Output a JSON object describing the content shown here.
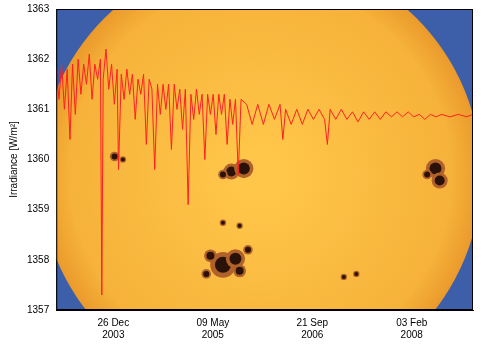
{
  "chart_data": {
    "type": "line",
    "y_label": "Irradiance [W/m²]",
    "color": "#ff2020",
    "grid": false,
    "xlim": [
      "2003-03-14",
      "2008-12-07"
    ],
    "xticks": [
      {
        "value": "2003-12-26",
        "label": "26 Dec 2003"
      },
      {
        "value": "2005-05-09",
        "label": "09 May 2005"
      },
      {
        "value": "2006-09-21",
        "label": "21 Sep 2006"
      },
      {
        "value": "2008-02-03",
        "label": "03 Feb 2008"
      }
    ],
    "ylim": [
      1357,
      1363
    ],
    "yticks": [
      1357,
      1358,
      1359,
      1360,
      1361,
      1362,
      1363
    ],
    "x": [
      "2003-03-14",
      "2003-03-28",
      "2003-04-10",
      "2003-04-24",
      "2003-05-08",
      "2003-05-22",
      "2003-06-04",
      "2003-06-18",
      "2003-07-02",
      "2003-07-16",
      "2003-07-30",
      "2003-08-13",
      "2003-08-27",
      "2003-09-10",
      "2003-09-24",
      "2003-10-08",
      "2003-10-22",
      "2003-10-29",
      "2003-11-05",
      "2003-11-19",
      "2003-12-03",
      "2003-12-17",
      "2003-12-31",
      "2004-01-14",
      "2004-01-21",
      "2004-02-04",
      "2004-02-18",
      "2004-03-03",
      "2004-03-17",
      "2004-03-31",
      "2004-04-14",
      "2004-04-28",
      "2004-05-12",
      "2004-05-26",
      "2004-06-09",
      "2004-06-23",
      "2004-07-07",
      "2004-07-21",
      "2004-08-04",
      "2004-08-18",
      "2004-09-01",
      "2004-09-15",
      "2004-09-29",
      "2004-10-13",
      "2004-10-27",
      "2004-11-10",
      "2004-11-24",
      "2004-12-08",
      "2004-12-22",
      "2005-01-05",
      "2005-01-19",
      "2005-02-02",
      "2005-02-16",
      "2005-03-02",
      "2005-03-16",
      "2005-03-30",
      "2005-04-13",
      "2005-04-27",
      "2005-05-11",
      "2005-05-25",
      "2005-06-08",
      "2005-06-22",
      "2005-07-06",
      "2005-07-20",
      "2005-08-03",
      "2005-08-17",
      "2005-08-31",
      "2005-09-14",
      "2005-09-28",
      "2005-10-26",
      "2005-11-23",
      "2005-12-21",
      "2006-01-18",
      "2006-02-15",
      "2006-03-15",
      "2006-04-12",
      "2006-04-26",
      "2006-05-10",
      "2006-06-07",
      "2006-07-05",
      "2006-08-02",
      "2006-08-30",
      "2006-09-27",
      "2006-10-25",
      "2006-11-22",
      "2006-12-06",
      "2006-12-20",
      "2007-01-17",
      "2007-02-14",
      "2007-03-14",
      "2007-04-11",
      "2007-05-09",
      "2007-06-06",
      "2007-07-04",
      "2007-08-01",
      "2007-08-29",
      "2007-09-26",
      "2007-10-24",
      "2007-11-21",
      "2007-12-19",
      "2008-01-16",
      "2008-02-13",
      "2008-03-12",
      "2008-04-09",
      "2008-05-07",
      "2008-06-04",
      "2008-07-02",
      "2008-08-13",
      "2008-09-24",
      "2008-11-05",
      "2008-12-07"
    ],
    "values": [
      1361.8,
      1361.2,
      1361.9,
      1361.0,
      1361.8,
      1360.4,
      1361.9,
      1360.9,
      1362.0,
      1361.3,
      1361.9,
      1361.5,
      1362.1,
      1361.2,
      1361.9,
      1361.6,
      1362.0,
      1357.3,
      1361.6,
      1362.2,
      1361.4,
      1361.9,
      1361.1,
      1361.8,
      1359.8,
      1361.7,
      1361.2,
      1361.8,
      1361.3,
      1361.7,
      1360.8,
      1361.6,
      1361.3,
      1361.7,
      1360.3,
      1361.6,
      1361.4,
      1359.8,
      1361.5,
      1360.9,
      1361.5,
      1361.0,
      1361.5,
      1360.2,
      1361.5,
      1361.0,
      1361.4,
      1360.6,
      1361.4,
      1359.1,
      1361.3,
      1360.8,
      1361.4,
      1360.9,
      1361.3,
      1360.0,
      1361.3,
      1360.9,
      1361.3,
      1360.5,
      1361.3,
      1360.9,
      1361.3,
      1360.3,
      1361.2,
      1360.7,
      1361.2,
      1359.7,
      1361.2,
      1361.1,
      1360.7,
      1361.1,
      1360.7,
      1361.1,
      1360.8,
      1361.1,
      1360.4,
      1361.0,
      1360.7,
      1361.0,
      1360.7,
      1361.0,
      1360.8,
      1361.0,
      1360.8,
      1360.3,
      1361.0,
      1360.8,
      1361.0,
      1360.8,
      1360.95,
      1360.75,
      1360.95,
      1360.8,
      1360.95,
      1360.8,
      1360.95,
      1360.85,
      1360.95,
      1360.85,
      1360.95,
      1360.85,
      1360.9,
      1360.8,
      1360.9,
      1360.85,
      1360.9,
      1360.85,
      1360.9,
      1360.85,
      1360.9
    ]
  }
}
